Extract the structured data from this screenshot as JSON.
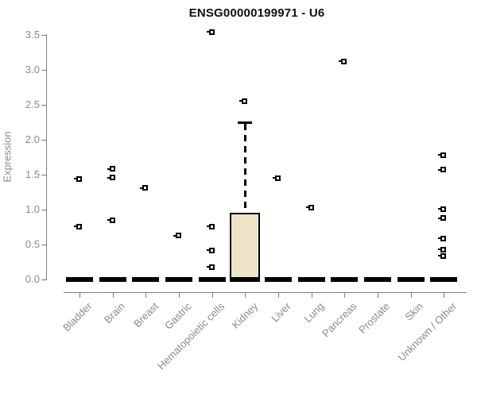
{
  "chart_data": {
    "type": "boxplot",
    "title": "ENSG00000199971 - U6",
    "ylabel": "Expression",
    "xlabel": "",
    "ylim": [
      0.0,
      3.5
    ],
    "grid": false,
    "legend": "none",
    "ytick_labels": [
      "0.0",
      "0.5",
      "1.0",
      "1.5",
      "2.0",
      "2.5",
      "3.0",
      "3.5"
    ],
    "yticks": [
      0.0,
      0.5,
      1.0,
      1.5,
      2.0,
      2.5,
      3.0,
      3.5
    ],
    "categories": [
      "Bladder",
      "Brain",
      "Breast",
      "Gastric",
      "Hematopoietic cells",
      "Kidney",
      "Liver",
      "Lung",
      "Pancreas",
      "Prostate",
      "Skin",
      "Unknown / Other"
    ],
    "boxes": [
      {
        "category": "Bladder",
        "q1": 0,
        "median": 0,
        "q3": 0
      },
      {
        "category": "Brain",
        "q1": 0,
        "median": 0,
        "q3": 0
      },
      {
        "category": "Breast",
        "q1": 0,
        "median": 0,
        "q3": 0
      },
      {
        "category": "Gastric",
        "q1": 0,
        "median": 0,
        "q3": 0
      },
      {
        "category": "Hematopoietic cells",
        "q1": 0,
        "median": 0,
        "q3": 0
      },
      {
        "category": "Kidney",
        "q1": 0,
        "median": 0,
        "q3": 0.96,
        "whisker_high": 2.26
      },
      {
        "category": "Liver",
        "q1": 0,
        "median": 0,
        "q3": 0
      },
      {
        "category": "Lung",
        "q1": 0,
        "median": 0,
        "q3": 0
      },
      {
        "category": "Pancreas",
        "q1": 0,
        "median": 0,
        "q3": 0
      },
      {
        "category": "Prostate",
        "q1": 0,
        "median": 0,
        "q3": 0
      },
      {
        "category": "Skin",
        "q1": 0,
        "median": 0,
        "q3": 0
      },
      {
        "category": "Unknown / Other",
        "q1": 0,
        "median": 0,
        "q3": 0
      }
    ],
    "points": [
      {
        "category": "Bladder",
        "value": 1.44
      },
      {
        "category": "Bladder",
        "value": 0.76
      },
      {
        "category": "Brain",
        "value": 1.58
      },
      {
        "category": "Brain",
        "value": 1.46
      },
      {
        "category": "Brain",
        "value": 0.85
      },
      {
        "category": "Breast",
        "value": 1.31
      },
      {
        "category": "Gastric",
        "value": 0.63
      },
      {
        "category": "Hematopoietic cells",
        "value": 3.54
      },
      {
        "category": "Hematopoietic cells",
        "value": 0.76
      },
      {
        "category": "Hematopoietic cells",
        "value": 0.42
      },
      {
        "category": "Hematopoietic cells",
        "value": 0.18
      },
      {
        "category": "Kidney",
        "value": 2.55
      },
      {
        "category": "Liver",
        "value": 1.45
      },
      {
        "category": "Lung",
        "value": 1.03
      },
      {
        "category": "Pancreas",
        "value": 3.12
      },
      {
        "category": "Unknown / Other",
        "value": 1.78
      },
      {
        "category": "Unknown / Other",
        "value": 1.57
      },
      {
        "category": "Unknown / Other",
        "value": 1.01
      },
      {
        "category": "Unknown / Other",
        "value": 0.88
      },
      {
        "category": "Unknown / Other",
        "value": 0.59
      },
      {
        "category": "Unknown / Other",
        "value": 0.43
      },
      {
        "category": "Unknown / Other",
        "value": 0.34
      }
    ],
    "colors": {
      "box_fill": "#EDE4C8",
      "box_border": "#000000",
      "median": "#000000",
      "point": "#000000",
      "axis": "#7D7D7D",
      "tick_label": "#8A8A8A",
      "title": "#111111"
    }
  }
}
